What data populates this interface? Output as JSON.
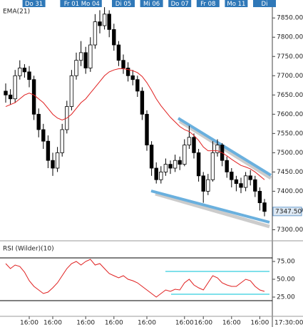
{
  "chart_data": [
    {
      "type": "candlestick",
      "title": "EMA(21)",
      "categories": [
        null,
        null,
        null,
        null,
        null,
        null,
        null,
        null,
        null,
        null,
        null,
        null,
        null,
        null,
        null,
        null,
        null,
        null,
        null,
        null,
        null,
        null,
        null,
        null,
        null,
        null,
        null,
        null,
        null,
        null,
        null,
        null,
        null,
        null,
        null,
        null,
        null,
        null,
        null,
        null,
        null,
        null,
        null,
        null,
        null,
        null,
        null,
        null,
        null,
        null,
        null,
        null,
        null,
        null,
        null,
        null
      ],
      "open": [
        7660,
        7650,
        7640,
        7700,
        7720,
        7710,
        7690,
        7600,
        7560,
        7530,
        7480,
        7460,
        7500,
        7560,
        7620,
        7700,
        7740,
        7760,
        7720,
        7780,
        7840,
        7830,
        7860,
        7820,
        7780,
        7740,
        7720,
        7700,
        7690,
        7660,
        7600,
        7520,
        7460,
        7430,
        7450,
        7470,
        7460,
        7480,
        7470,
        7520,
        7540,
        7500,
        7440,
        7400,
        7430,
        7500,
        7520,
        7480,
        7450,
        7430,
        7420,
        7410,
        7440,
        7430,
        7400,
        7370
      ],
      "high": [
        7680,
        7665,
        7715,
        7740,
        7730,
        7725,
        7700,
        7615,
        7575,
        7545,
        7500,
        7515,
        7575,
        7635,
        7715,
        7760,
        7790,
        7775,
        7800,
        7860,
        7870,
        7878,
        7870,
        7835,
        7790,
        7755,
        7735,
        7715,
        7700,
        7670,
        7610,
        7530,
        7475,
        7465,
        7485,
        7480,
        7495,
        7490,
        7535,
        7570,
        7550,
        7510,
        7450,
        7445,
        7530,
        7535,
        7525,
        7490,
        7460,
        7440,
        7435,
        7450,
        7455,
        7440,
        7410,
        7380
      ],
      "low": [
        7630,
        7625,
        7630,
        7690,
        7695,
        7670,
        7585,
        7540,
        7510,
        7460,
        7440,
        7450,
        7490,
        7550,
        7610,
        7690,
        7725,
        7705,
        7710,
        7770,
        7810,
        7820,
        7800,
        7765,
        7725,
        7705,
        7685,
        7675,
        7645,
        7585,
        7505,
        7440,
        7420,
        7420,
        7440,
        7445,
        7450,
        7455,
        7465,
        7510,
        7485,
        7425,
        7370,
        7390,
        7425,
        7490,
        7465,
        7435,
        7410,
        7400,
        7395,
        7400,
        7415,
        7385,
        7350,
        7335
      ],
      "close": [
        7650,
        7640,
        7700,
        7720,
        7710,
        7690,
        7600,
        7560,
        7530,
        7480,
        7460,
        7500,
        7560,
        7620,
        7700,
        7740,
        7760,
        7720,
        7780,
        7840,
        7830,
        7860,
        7820,
        7780,
        7740,
        7720,
        7700,
        7690,
        7660,
        7600,
        7520,
        7460,
        7430,
        7450,
        7470,
        7460,
        7480,
        7470,
        7520,
        7540,
        7500,
        7440,
        7400,
        7430,
        7500,
        7520,
        7480,
        7450,
        7430,
        7420,
        7410,
        7440,
        7430,
        7400,
        7370,
        7347.5
      ],
      "ema": {
        "color": "#e02020",
        "values": [
          7620,
          7625,
          7630,
          7640,
          7650,
          7655,
          7650,
          7640,
          7630,
          7615,
          7600,
          7590,
          7585,
          7590,
          7600,
          7615,
          7630,
          7640,
          7655,
          7670,
          7685,
          7700,
          7710,
          7715,
          7718,
          7718,
          7716,
          7713,
          7708,
          7698,
          7682,
          7662,
          7640,
          7622,
          7607,
          7592,
          7580,
          7568,
          7560,
          7555,
          7545,
          7532,
          7515,
          7505,
          7505,
          7505,
          7500,
          7492,
          7483,
          7475,
          7467,
          7463,
          7458,
          7450,
          7440,
          7430
        ]
      },
      "last_price": {
        "value": 7347.5,
        "label": "7347.50"
      },
      "ylim": [
        7275,
        7880
      ],
      "yticks": [
        {
          "value": 7300,
          "label": "7300.00"
        },
        {
          "value": 7350,
          "label": "7350.00"
        },
        {
          "value": 7400,
          "label": "7400.00"
        },
        {
          "value": 7450,
          "label": "7450.00"
        },
        {
          "value": 7500,
          "label": "7500.00"
        },
        {
          "value": 7550,
          "label": "7550.00"
        },
        {
          "value": 7600,
          "label": "7600.00"
        },
        {
          "value": 7650,
          "label": "7650.00"
        },
        {
          "value": 7700,
          "label": "7700.00"
        },
        {
          "value": 7750,
          "label": "7750.00"
        },
        {
          "value": 7800,
          "label": "7800.00"
        },
        {
          "value": 7850,
          "label": "7850.00"
        }
      ],
      "x2ticks": [
        {
          "value": 6,
          "label": "Do 31"
        },
        {
          "value": 14,
          "label": "Fr 01"
        },
        {
          "value": 18,
          "label": "Mo 04"
        },
        {
          "value": 25,
          "label": "Di 05"
        },
        {
          "value": 31,
          "label": "Mi 06"
        },
        {
          "value": 37,
          "label": "Do 07"
        },
        {
          "value": 43,
          "label": "Fr 08"
        },
        {
          "value": 49,
          "label": "Mo 11"
        },
        {
          "value": 55,
          "label": "Di"
        }
      ]
    },
    {
      "type": "line",
      "title": "RSI (Wilder)(10)",
      "series": [
        {
          "name": "RSI (Wilder)(10)",
          "color": "#e02020",
          "values": [
            72,
            65,
            70,
            68,
            60,
            48,
            40,
            35,
            30,
            32,
            38,
            45,
            55,
            65,
            72,
            75,
            70,
            75,
            78,
            70,
            72,
            65,
            58,
            55,
            52,
            55,
            50,
            48,
            45,
            40,
            35,
            30,
            25,
            30,
            35,
            33,
            36,
            35,
            45,
            50,
            42,
            38,
            35,
            45,
            55,
            52,
            45,
            42,
            40,
            40,
            45,
            50,
            48,
            40,
            35,
            33
          ]
        }
      ],
      "levels": [
        80,
        20
      ],
      "ylim": [
        0,
        100
      ],
      "yticks": [
        {
          "value": 75,
          "label": "75.00"
        },
        {
          "value": 50,
          "label": "50.00"
        },
        {
          "value": 25,
          "label": "25.00"
        }
      ],
      "xticks": [
        {
          "value": 5,
          "label": "16:00"
        },
        {
          "value": 10,
          "label": "16:00"
        },
        {
          "value": 17,
          "label": "16:00"
        },
        {
          "value": 23,
          "label": "16:00"
        },
        {
          "value": 30,
          "label": "16:00"
        },
        {
          "value": 38,
          "label": "16:00"
        },
        {
          "value": 42,
          "label": "16:00"
        },
        {
          "value": 48,
          "label": "16:00"
        },
        {
          "value": 54,
          "label": "16:00"
        }
      ],
      "current_time": "17:30:00"
    }
  ]
}
